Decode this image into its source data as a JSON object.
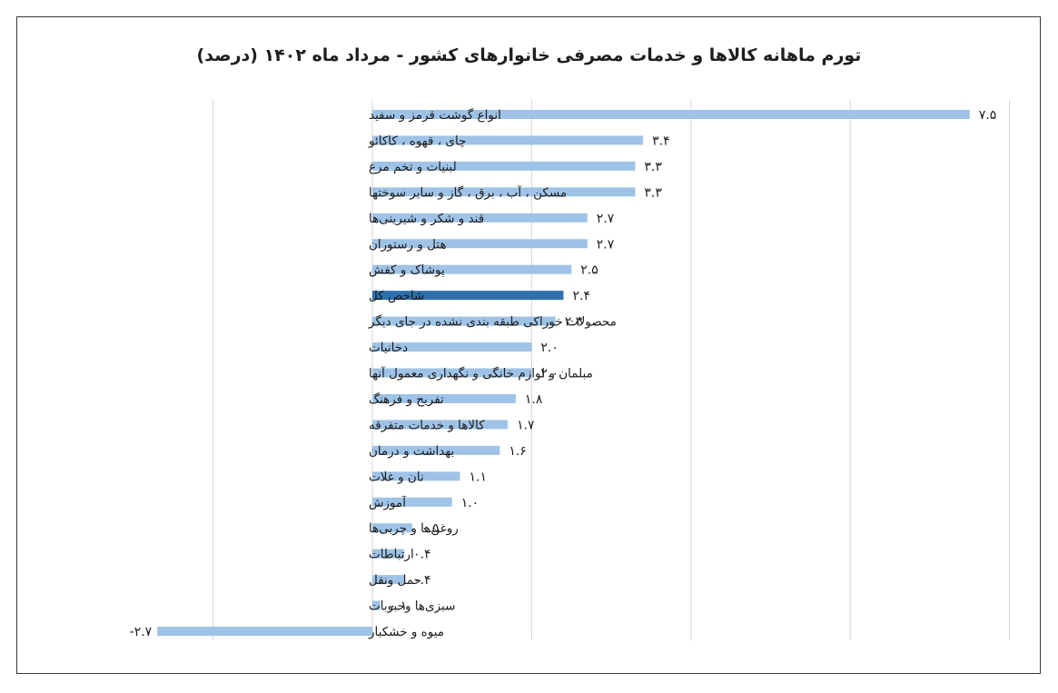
{
  "chart_data": {
    "type": "bar",
    "orientation": "horizontal",
    "title": "تورم ماهانه کالاها و خدمات مصرفی خانوارهای کشور - مرداد ماه ۱۴۰۲ (درصد)",
    "categories": [
      "انواع گوشت قرمز و سفید",
      "چای ، قهوه ، کاکائو",
      "لبنیات و تخم مرغ",
      "مسکن ، آب ، برق ، گاز و سایر سوختها",
      "قند و شکر و شیرینی‌ها",
      "هتل و رستوران",
      "پوشاک و کفش",
      "شاخص کل",
      "محصولات خوراکی طبقه بندی نشده در جای دیگر",
      "دخانیات",
      "مبلمان و لوازم خانگی و نگهداری معمول آنها",
      "تفریح و فرهنگ",
      "کالاها و خدمات متفرقه",
      "بهداشت و درمان",
      "نان و غلات",
      "آموزش",
      "روغن‌ها و چربی‌ها",
      "ارتباطات",
      "حمل ونقل",
      "سبزی‌ها وحبوبات",
      "میوه و خشکبار"
    ],
    "values": [
      7.5,
      3.4,
      3.3,
      3.3,
      2.7,
      2.7,
      2.5,
      2.4,
      2.3,
      2.0,
      2.0,
      1.8,
      1.7,
      1.6,
      1.1,
      1.0,
      0.5,
      0.4,
      0.4,
      0.1,
      -2.7
    ],
    "value_labels": [
      "۷.۵",
      "۳.۴",
      "۳.۳",
      "۳.۳",
      "۲.۷",
      "۲.۷",
      "۲.۵",
      "۲.۴",
      "۲.۳",
      "۲.۰",
      "۲.۰",
      "۱.۸",
      "۱.۷",
      "۱.۶",
      "۱.۱",
      "۱.۰",
      "۰.۵",
      "۰.۴",
      "۰.۴",
      "۰.۱",
      "-۲.۷"
    ],
    "highlight_category": "شاخص کل",
    "xlim": [
      -2.0,
      8.0
    ],
    "grid": true,
    "colors": {
      "bar": "#9fc3e7",
      "highlight": "#2e6fad",
      "grid": "#d4d4d4",
      "text": "#1a1a1a"
    }
  }
}
